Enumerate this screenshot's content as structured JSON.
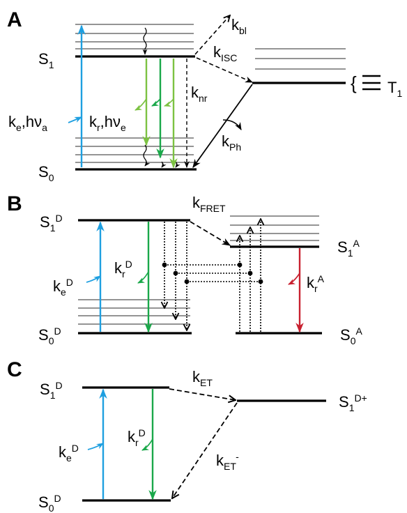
{
  "colors": {
    "excitation": "#1e9fe0",
    "radiative": "#1aa84a",
    "radiative_light": "#7cc242",
    "acceptor_emission": "#c8202f",
    "line": "#000000",
    "thin_line": "#333333",
    "vibrational_level": "#555555"
  },
  "panels": {
    "A": {
      "panel_label": "A",
      "s1": {
        "main": "S",
        "sub": "1"
      },
      "s0": {
        "main": "S",
        "sub": "0"
      },
      "t1": {
        "main": "T",
        "sub": "1"
      },
      "k_bl": {
        "main": "k",
        "sub": "bl"
      },
      "k_isc": {
        "main": "k",
        "sub": "ISC"
      },
      "k_nr": {
        "main": "k",
        "sub": "nr"
      },
      "k_ph": {
        "main": "k",
        "sub": "Ph"
      },
      "excitation": {
        "k": "k",
        "k_sub": "e",
        "sep": ",hν",
        "nu_sub": "a"
      },
      "emission": {
        "k": "k",
        "k_sub": "r",
        "sep": ",hν",
        "nu_sub": "e"
      },
      "brace": "{"
    },
    "B": {
      "panel_label": "B",
      "s1d": {
        "main": "S",
        "sub": "1",
        "sup": "D"
      },
      "s0d": {
        "main": "S",
        "sub": "0",
        "sup": "D"
      },
      "s1a": {
        "main": "S",
        "sub": "1",
        "sup": "A"
      },
      "s0a": {
        "main": "S",
        "sub": "0",
        "sup": "A"
      },
      "k_fret": {
        "main": "k",
        "sub": "FRET"
      },
      "ke_d": {
        "main": "k",
        "sub": "e",
        "sup": "D"
      },
      "kr_d": {
        "main": "k",
        "sub": "r",
        "sup": "D"
      },
      "kr_a": {
        "main": "k",
        "sub": "r",
        "sup": "A"
      }
    },
    "C": {
      "panel_label": "C",
      "s1d": {
        "main": "S",
        "sub": "1",
        "sup": "D"
      },
      "s0d": {
        "main": "S",
        "sub": "0",
        "sup": "D"
      },
      "s1d_plus": {
        "main": "S",
        "sub": "1",
        "sup": "D+"
      },
      "k_et": {
        "main": "k",
        "sub": "ET"
      },
      "k_et_minus": {
        "main": "k",
        "sub": "ET",
        "sup": "-"
      },
      "ke_d": {
        "main": "k",
        "sub": "e",
        "sup": "D"
      },
      "kr_d": {
        "main": "k",
        "sub": "r",
        "sup": "D"
      }
    }
  }
}
